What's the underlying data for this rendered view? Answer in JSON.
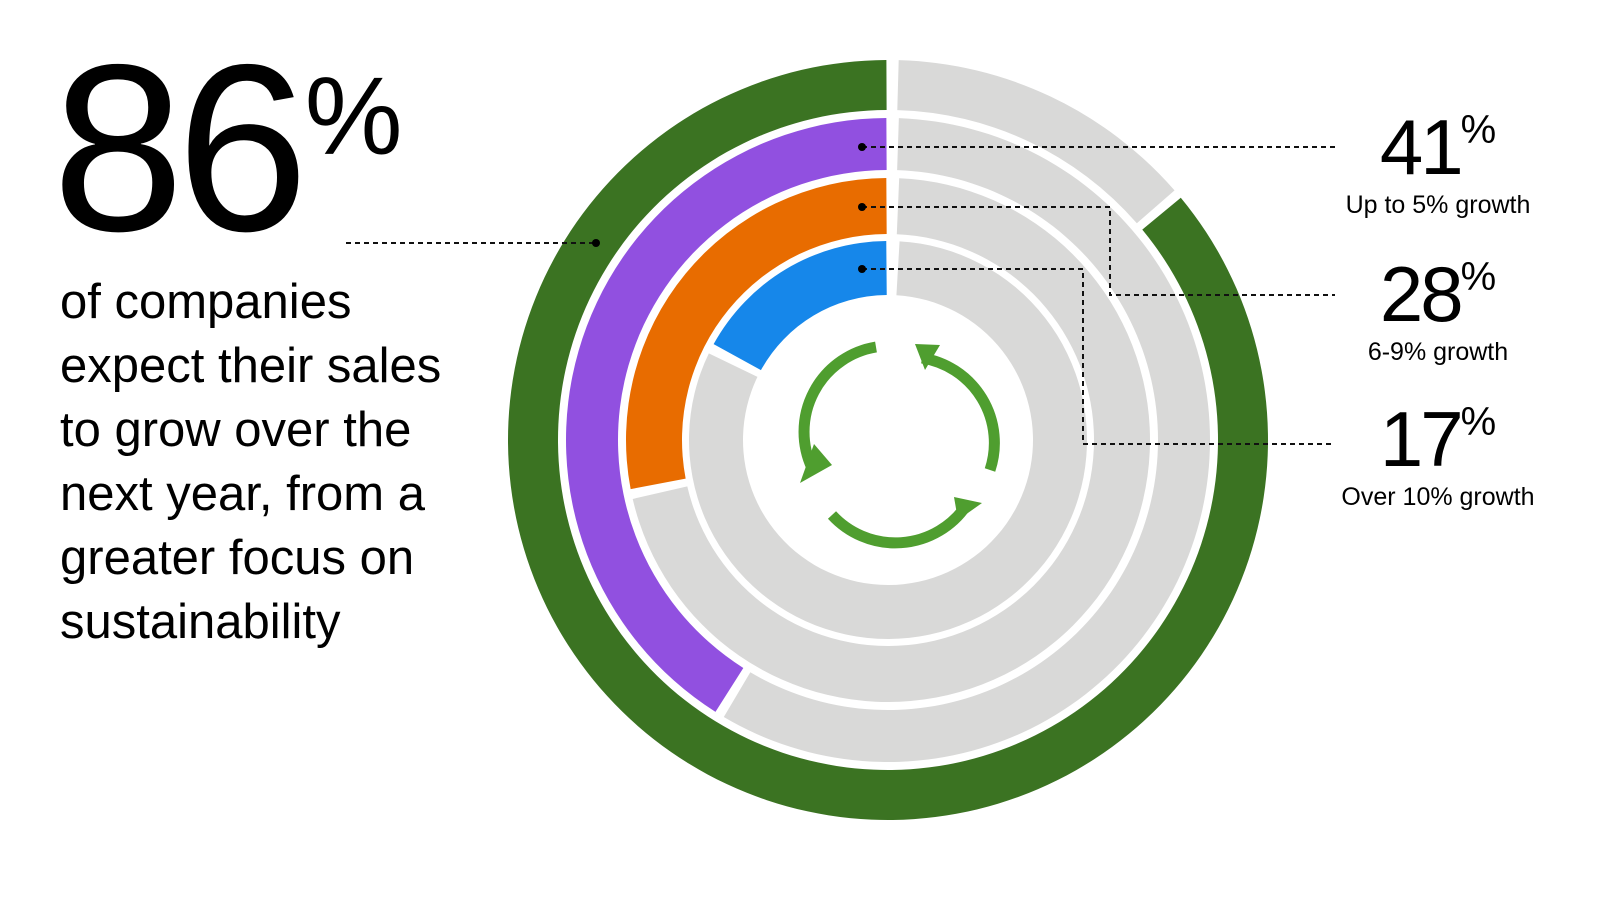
{
  "headline": {
    "value": "86",
    "unit": "%",
    "description_lines": [
      "of companies",
      "expect their sales",
      "to grow over the",
      "next year, from a",
      "greater focus on",
      "sustainability"
    ]
  },
  "callouts": [
    {
      "value": "41",
      "unit": "%",
      "label": "Up to 5% growth"
    },
    {
      "value": "28",
      "unit": "%",
      "label": "6-9% growth"
    },
    {
      "value": "17",
      "unit": "%",
      "label": "Over 10% growth"
    }
  ],
  "center_icon": "recycle-arrows-icon",
  "colors": {
    "total": "#3b7322",
    "up_to_5": "#9150e0",
    "six_to_nine": "#e86c00",
    "over_10": "#1687ea",
    "track": "#d9d9d8",
    "icon": "#4f9e2f"
  },
  "chart_data": {
    "type": "radial_bar",
    "title": "86% of companies expect their sales to grow over the next year, from a greater focus on sustainability",
    "series": [
      {
        "name": "Total expecting growth",
        "value": 86,
        "color": "#3b7322"
      },
      {
        "name": "Up to 5% growth",
        "value": 41,
        "color": "#9150e0"
      },
      {
        "name": "6-9% growth",
        "value": 28,
        "color": "#e86c00"
      },
      {
        "name": "Over 10% growth",
        "value": 17,
        "color": "#1687ea"
      }
    ],
    "max": 100,
    "direction": "counter-clockwise from 12 o'clock",
    "track_color": "#d9d9d8"
  }
}
